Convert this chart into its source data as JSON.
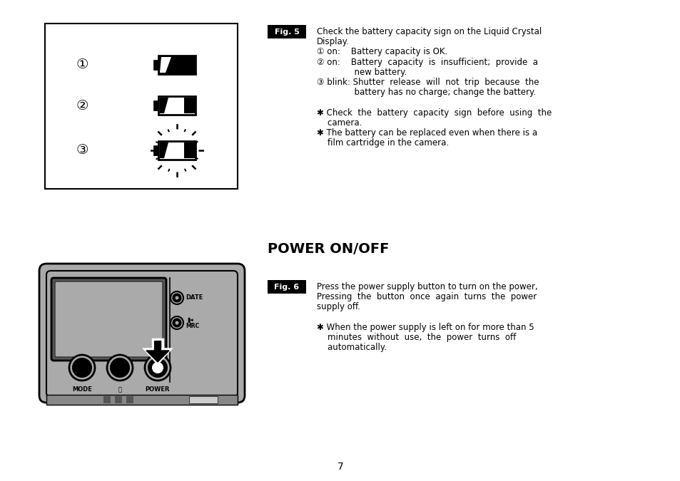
{
  "page_bg": "#ffffff",
  "fig5_label": "Fig. 5",
  "fig6_label": "Fig. 6",
  "section_title": "POWER ON/OFF",
  "page_number": "7",
  "fig5_text": [
    [
      "Check the battery capacity sign on the Liquid Crystal",
      false
    ],
    [
      "Display.",
      false
    ],
    [
      "① on:    Battery capacity is OK.",
      false
    ],
    [
      "② on:    Battery  capacity  is  insufficient;  provide  a",
      false
    ],
    [
      "              new battery.",
      false
    ],
    [
      "③ blink: Shutter  release  will  not  trip  because  the",
      false
    ],
    [
      "              battery has no charge; change the battery.",
      false
    ],
    [
      "",
      false
    ],
    [
      "✱ Check  the  battery  capacity  sign  before  using  the",
      false
    ],
    [
      "    camera.",
      false
    ],
    [
      "✱ The battery can be replaced even when there is a",
      false
    ],
    [
      "    film cartridge in the camera.",
      false
    ]
  ],
  "fig6_text": [
    [
      "Press the power supply button to turn on the power,",
      false
    ],
    [
      "Pressing  the  button  once  again  turns  the  power",
      false
    ],
    [
      "supply off.",
      false
    ],
    [
      "",
      false
    ],
    [
      "✱ When the power supply is left on for more than 5",
      false
    ],
    [
      "    minutes  without  use,  the  power  turns  off",
      false
    ],
    [
      "    automatically.",
      false
    ]
  ],
  "gray_cam": "#aaaaaa",
  "gray_lcd": "#999999",
  "gray_lcd_inner": "#cccccc"
}
